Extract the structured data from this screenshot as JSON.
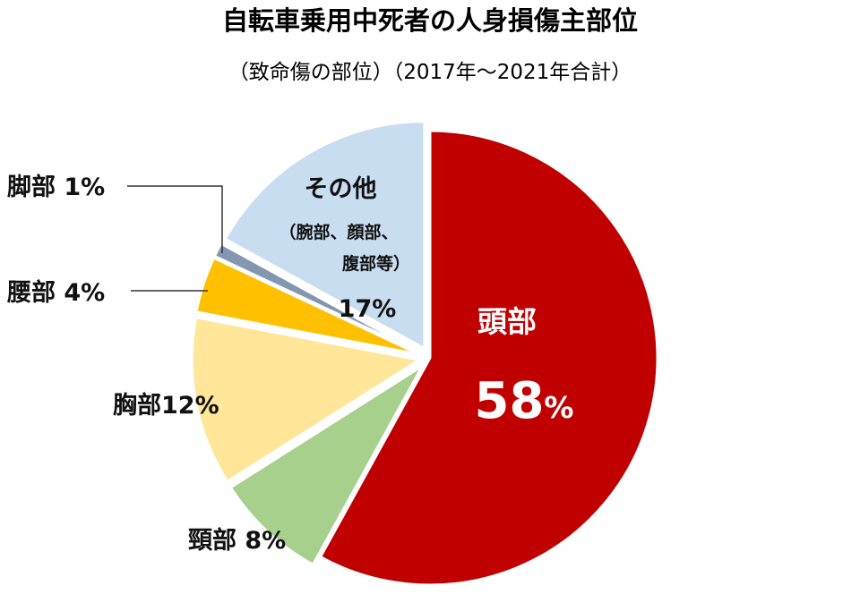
{
  "chart_data": {
    "type": "pie",
    "title": "自転車乗用中死者の人身損傷主部位",
    "subtitle": "（致命傷の部位）（2017年～2021年合計）",
    "start": "12 o'clock",
    "direction": "clockwise",
    "slices": [
      {
        "key": "head",
        "value": 58,
        "color": "#c00000",
        "name": "頭部",
        "value_label": "58%",
        "exploded": false
      },
      {
        "key": "neck",
        "value": 8,
        "color": "#a8d08d",
        "name": "頸部",
        "value_label": "8%",
        "exploded": true
      },
      {
        "key": "chest",
        "value": 12,
        "color": "#ffe699",
        "name": "胸部",
        "value_label": "12%",
        "exploded": true
      },
      {
        "key": "waist",
        "value": 4,
        "color": "#ffc000",
        "name": "腰部",
        "value_label": "4%",
        "exploded": true
      },
      {
        "key": "leg",
        "value": 1,
        "color": "#8497b0",
        "name": "脚部",
        "value_label": "1%",
        "exploded": true
      },
      {
        "key": "other",
        "value": 17,
        "color": "#c9ddf1",
        "name": "その他",
        "value_label": "17%",
        "exploded": true
      }
    ],
    "other_note_line1": "（腕部、顔部、",
    "other_note_line2": "腹部等）",
    "percent_suffix": "%",
    "head_value_number": "58",
    "chest_combined_label": "胸部12%",
    "neck_combined_label": "頸部 8%",
    "waist_combined_label": "腰部 4%",
    "leg_combined_label": "脚部 1%"
  }
}
